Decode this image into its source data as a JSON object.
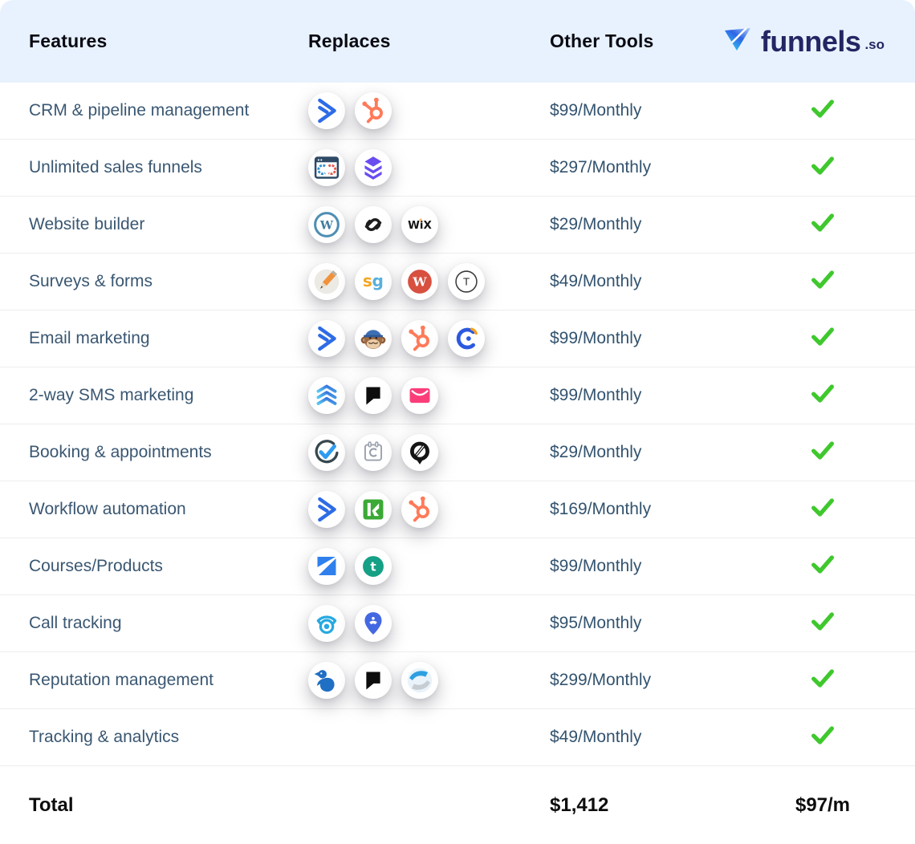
{
  "header": {
    "features": "Features",
    "replaces": "Replaces",
    "other_tools": "Other Tools",
    "brand": {
      "name": "funnels",
      "tld": ".so"
    }
  },
  "rows": [
    {
      "feature": "CRM & pipeline management",
      "icons": [
        "activecampaign",
        "hubspot"
      ],
      "price": "$99/Monthly",
      "included": true
    },
    {
      "feature": "Unlimited sales funnels",
      "icons": [
        "clickfunnels",
        "leadpages"
      ],
      "price": "$297/Monthly",
      "included": true
    },
    {
      "feature": "Website builder",
      "icons": [
        "wordpress",
        "squarespace",
        "wix"
      ],
      "price": "$29/Monthly",
      "included": true
    },
    {
      "feature": "Surveys & forms",
      "icons": [
        "pencil",
        "surveygizmo",
        "wufoo",
        "typeform"
      ],
      "price": "$49/Monthly",
      "included": true
    },
    {
      "feature": "Email marketing",
      "icons": [
        "activecampaign",
        "mailchimp",
        "hubspot",
        "constant-contact"
      ],
      "price": "$99/Monthly",
      "included": true
    },
    {
      "feature": "2-way SMS marketing",
      "icons": [
        "triple-chevron",
        "quote-bubble",
        "pink-envelope"
      ],
      "price": "$99/Monthly",
      "included": true
    },
    {
      "feature": "Booking & appointments",
      "icons": [
        "setmore",
        "calendly",
        "acuity"
      ],
      "price": "$29/Monthly",
      "included": true
    },
    {
      "feature": "Workflow automation",
      "icons": [
        "activecampaign",
        "keap",
        "hubspot"
      ],
      "price": "$169/Monthly",
      "included": true
    },
    {
      "feature": "Courses/Products",
      "icons": [
        "kajabi",
        "teachable"
      ],
      "price": "$99/Monthly",
      "included": true
    },
    {
      "feature": "Call tracking",
      "icons": [
        "callrail",
        "calltracking-pin"
      ],
      "price": "$95/Monthly",
      "included": true
    },
    {
      "feature": "Reputation management",
      "icons": [
        "birdeye",
        "quote-bubble",
        "podium"
      ],
      "price": "$299/Monthly",
      "included": true
    },
    {
      "feature": "Tracking & analytics",
      "icons": [],
      "price": "$49/Monthly",
      "included": true
    }
  ],
  "total": {
    "label": "Total",
    "other_tools_total": "$1,412",
    "funnels_price": "$97/m"
  },
  "colors": {
    "header_bg": "#E8F2FE",
    "accent_green": "#3FC82D",
    "text_slate": "#3A5772",
    "brand_navy": "#232663"
  }
}
